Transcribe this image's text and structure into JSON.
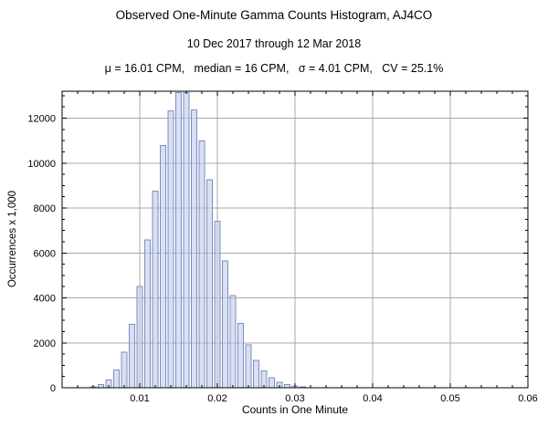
{
  "chart_data": {
    "type": "bar",
    "title": "Observed One-Minute Gamma Counts Histogram, AJ4CO",
    "subtitle": "10 Dec 2017 through 12 Mar 2018",
    "annotation": "μ = 16.01 CPM,   median = 16 CPM,   σ = 4.01 CPM,   CV = 25.1%",
    "xlabel": "Counts in One Minute",
    "ylabel": "Occurrences x 1,000",
    "xlim": [
      0,
      0.06
    ],
    "ylim": [
      0,
      13200
    ],
    "bin_width": 0.001,
    "x": [
      0.004,
      0.005,
      0.006,
      0.007,
      0.008,
      0.009,
      0.01,
      0.011,
      0.012,
      0.013,
      0.014,
      0.015,
      0.016,
      0.017,
      0.018,
      0.019,
      0.02,
      0.021,
      0.022,
      0.023,
      0.024,
      0.025,
      0.026,
      0.027,
      0.028,
      0.029,
      0.03,
      0.031
    ],
    "values": [
      49,
      133,
      347,
      795,
      1590,
      2825,
      4515,
      6570,
      8760,
      10785,
      12320,
      13144,
      13144,
      12370,
      10996,
      9260,
      7408,
      5644,
      4105,
      2856,
      1904,
      1219,
      750,
      444,
      254,
      140,
      75,
      38
    ],
    "x_ticks": [
      0.01,
      0.02,
      0.03,
      0.04,
      0.05,
      0.06
    ],
    "x_tick_labels": [
      "0.01",
      "0.02",
      "0.03",
      "0.04",
      "0.05",
      "0.06"
    ],
    "y_ticks": [
      0,
      2000,
      4000,
      6000,
      8000,
      10000,
      12000
    ],
    "y_tick_labels": [
      "0",
      "2000",
      "4000",
      "6000",
      "8000",
      "10000",
      "12000"
    ],
    "x_minor_step": 0.002,
    "y_minor_step": 500,
    "grid": "both",
    "legend": "none",
    "colors": {
      "bar_fill": "#c4d0ec",
      "bar_stroke": "#7d8ec0",
      "grid": "#a8a8a8",
      "frame": "#000000",
      "text": "#000000"
    }
  }
}
